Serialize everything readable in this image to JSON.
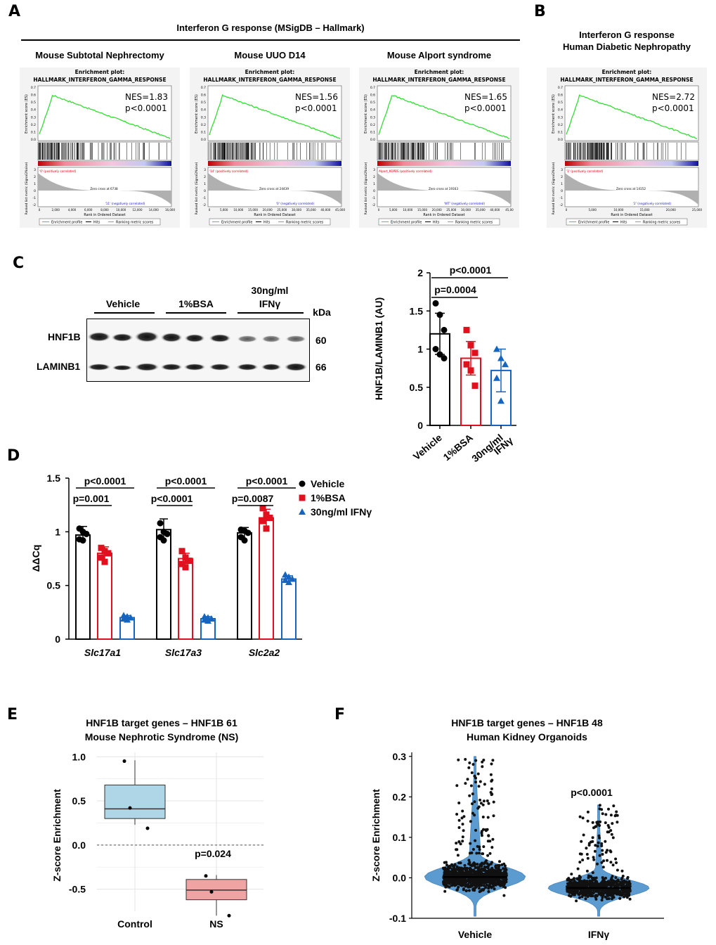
{
  "panel_letters": {
    "a": "A",
    "b": "B",
    "c": "C",
    "d": "D",
    "e": "E",
    "f": "F"
  },
  "colors": {
    "vehicle": "#000000",
    "bsa": "#e0101e",
    "ifn": "#1565c0",
    "es_line": "#33dd33",
    "box_control": "#aed6e6",
    "box_ns": "#f0a3a3",
    "violin": "#5b9bd0"
  },
  "panel_a": {
    "group_title": "Interferon G response (MSigDB – Hallmark)",
    "plots": [
      {
        "title": "Mouse Subtotal Nephrectomy",
        "plot_title_1": "Enrichment plot:",
        "plot_title_2": "HALLMARK_INTERFERON_GAMMA_RESPONSE",
        "nes": "NES=1.83",
        "p": "p<0.0001",
        "zero_cross": "Zero cross at 6738",
        "pos_label": "'0' (positively correlated)",
        "neg_label": "'11' (negatively correlated)",
        "x_ticks": [
          "0",
          "2,000",
          "4,000",
          "6,000",
          "8,000",
          "10,000",
          "12,000",
          "14,000",
          "16,000"
        ]
      },
      {
        "title": "Mouse UUO D14",
        "plot_title_1": "Enrichment plot:",
        "plot_title_2": "HALLMARK_INTERFERON_GAMMA_RESPONSE",
        "nes": "NES=1.56",
        "p": "p<0.0001",
        "zero_cross": "Zero cross at 24439",
        "pos_label": "'14' (positively correlated)",
        "neg_label": "'0' (negatively correlated)",
        "x_ticks": [
          "0",
          "5,000",
          "10,000",
          "15,000",
          "20,000",
          "25,000",
          "30,000",
          "35,000",
          "40,000",
          "45,000"
        ]
      },
      {
        "title": "Mouse Alport syndrome",
        "plot_title_1": "Enrichment plot:",
        "plot_title_2": "HALLMARK_INTERFERON_GAMMA_RESPONSE",
        "nes": "NES=1.65",
        "p": "p<0.0001",
        "zero_cross": "Zero cross at 19163",
        "pos_label": "Alport_KOPBS (positively correlated)",
        "neg_label": "'WT' (negatively correlated)",
        "x_ticks": [
          "0",
          "5,000",
          "10,000",
          "15,000",
          "20,000",
          "25,000",
          "30,000",
          "35,000",
          "40,000",
          "45,00"
        ]
      }
    ]
  },
  "panel_b": {
    "title_1": "Interferon G response",
    "title_2": "Human Diabetic Nephropathy",
    "plot": {
      "plot_title_1": "Enrichment plot:",
      "plot_title_2": "HALLMARK_INTERFERON_GAMMA_RESPONSE",
      "nes": "NES=2.72",
      "p": "p<0.0001",
      "zero_cross": "Zero cross at 14152",
      "pos_label": "'1' (positively correlated)",
      "neg_label": "'2' (negatively correlated)",
      "x_ticks": [
        "0",
        "5,000",
        "10,000",
        "15,000",
        "20,000",
        "25,000"
      ]
    }
  },
  "gsea_common": {
    "y_label_top": "Enrichment score (ES)",
    "y_label_bottom": "Ranked list metric (Signal2Noise)",
    "x_label": "Rank in Ordered Dataset",
    "legend": [
      "Enrichment profile",
      "Hits",
      "Ranking metric scores"
    ],
    "es_ticks": [
      "0.7",
      "0.6",
      "0.5",
      "0.4",
      "0.3",
      "0.2",
      "0.1",
      "0.0"
    ],
    "metric_ticks": [
      "3",
      "2",
      "1",
      "0",
      "-1",
      "-2"
    ]
  },
  "panel_c": {
    "blot": {
      "lanes": [
        "Vehicle",
        "1%BSA",
        "30ng/ml",
        "IFNγ"
      ],
      "kda": "kDa",
      "rows": [
        {
          "label": "HNF1B",
          "kda": "60"
        },
        {
          "label": "LAMINB1",
          "kda": "66"
        }
      ]
    }
  },
  "chart_data": [
    {
      "type": "bar",
      "id": "C",
      "ylabel": "HNF1B/LAMINB1 (AU)",
      "ylim": [
        0,
        2
      ],
      "y_ticks": [
        "0",
        "0.5",
        "1",
        "1.5",
        "2"
      ],
      "categories": [
        "Vehicle",
        "1%BSA",
        "30ng/ml IFNγ"
      ],
      "category_labels": [
        [
          "Vehicle"
        ],
        [
          "1%BSA"
        ],
        [
          "30ng/ml",
          "IFNγ"
        ]
      ],
      "values": [
        1.2,
        0.88,
        0.72
      ],
      "errors": [
        0.27,
        0.22,
        0.28
      ],
      "points": [
        [
          1.6,
          1.45,
          1.25,
          1.0,
          0.93,
          0.88
        ],
        [
          1.25,
          1.05,
          0.95,
          0.8,
          0.72,
          0.52
        ],
        [
          1.0,
          0.88,
          0.8,
          0.62,
          0.32
        ]
      ],
      "brackets": [
        {
          "from": 0,
          "to": 2,
          "label": "p<0.0001"
        },
        {
          "from": 0,
          "to": 1,
          "label": "p=0.0004"
        }
      ]
    },
    {
      "type": "bar",
      "id": "D",
      "ylabel": "ΔΔCq",
      "ylim": [
        0,
        1.5
      ],
      "y_ticks": [
        "0",
        "0.5",
        "1",
        "1.5"
      ],
      "categories": [
        "Slc17a1",
        "Slc17a3",
        "Slc2a2"
      ],
      "series": [
        {
          "name": "Vehicle",
          "values": [
            0.97,
            1.02,
            0.99
          ],
          "errors": [
            0.08,
            0.1,
            0.05
          ],
          "points": [
            [
              1.03,
              1.0,
              0.98,
              0.93,
              0.92
            ],
            [
              1.08,
              1.0,
              0.98,
              0.95,
              0.92
            ],
            [
              1.02,
              1.01,
              0.99,
              0.95,
              0.92
            ]
          ]
        },
        {
          "name": "1%BSA",
          "values": [
            0.8,
            0.75,
            1.13
          ],
          "errors": [
            0.06,
            0.05,
            0.08
          ],
          "points": [
            [
              0.85,
              0.82,
              0.8,
              0.76,
              0.72
            ],
            [
              0.82,
              0.76,
              0.73,
              0.7,
              0.67
            ],
            [
              1.22,
              1.16,
              1.13,
              1.1,
              1.03
            ]
          ]
        },
        {
          "name": "30ng/ml IFNγ",
          "values": [
            0.2,
            0.19,
            0.56
          ],
          "errors": [
            0.02,
            0.02,
            0.03
          ],
          "points": [
            [
              0.22,
              0.21,
              0.2,
              0.19,
              0.18
            ],
            [
              0.21,
              0.2,
              0.19,
              0.18,
              0.17
            ],
            [
              0.6,
              0.58,
              0.56,
              0.55,
              0.53
            ]
          ]
        }
      ],
      "brackets": [
        {
          "group": 0,
          "from": 0,
          "to": 2,
          "label": "p<0.0001"
        },
        {
          "group": 0,
          "from": 0,
          "to": 1,
          "label": "p=0.001"
        },
        {
          "group": 1,
          "from": 0,
          "to": 2,
          "label": "p<0.0001"
        },
        {
          "group": 1,
          "from": 0,
          "to": 1,
          "label": "p<0.0001"
        },
        {
          "group": 2,
          "from": 0,
          "to": 2,
          "label": "p<0.0001"
        },
        {
          "group": 2,
          "from": 0,
          "to": 1,
          "label": "p=0.0087"
        }
      ],
      "legend_position": "top-right"
    },
    {
      "type": "box",
      "id": "E",
      "title": "HNF1B target genes – HNF1B 61",
      "subtitle": "Mouse Nephrotic Syndrome (NS)",
      "ylabel": "Z-score Enrichment",
      "ylim": [
        -0.75,
        1.05
      ],
      "y_ticks": [
        "1.0",
        "0.5",
        "0.0",
        "-0.5"
      ],
      "categories": [
        "Control",
        "NS"
      ],
      "boxes": [
        {
          "name": "Control",
          "q1": 0.3,
          "median": 0.41,
          "q3": 0.68,
          "whisker_low": 0.23,
          "whisker_high": 0.96,
          "points": [
            0.95,
            0.42,
            0.19
          ]
        },
        {
          "name": "NS",
          "q1": -0.62,
          "median": -0.51,
          "q3": -0.39,
          "whisker_low": -0.8,
          "whisker_high": -0.34,
          "points": [
            -0.35,
            -0.53,
            -0.8
          ]
        }
      ],
      "annotation": "p=0.024",
      "grid": true
    },
    {
      "type": "violin",
      "id": "F",
      "title": "HNF1B target genes – HNF1B 48",
      "subtitle": "Human Kidney Organoids",
      "ylabel": "Z-score Enrichment",
      "ylim": [
        -0.1,
        0.31
      ],
      "y_ticks": [
        "0.3",
        "0.2",
        "0.1",
        "0.0",
        "-0.1"
      ],
      "categories": [
        "Vehicle",
        "IFNγ"
      ],
      "medians": [
        0.002,
        -0.025
      ],
      "ranges": [
        [
          -0.095,
          0.3
        ],
        [
          -0.095,
          0.18
        ]
      ],
      "annotation": "p<0.0001"
    }
  ]
}
